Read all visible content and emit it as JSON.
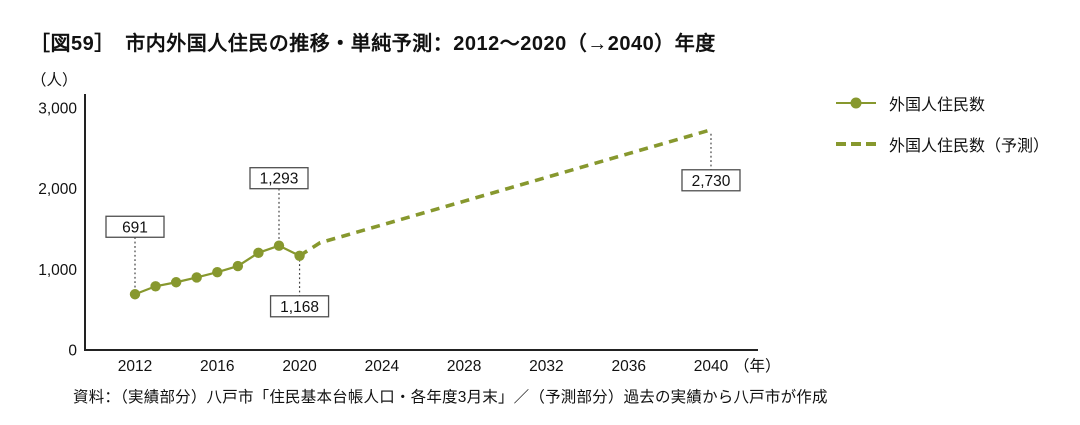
{
  "title": "［図59］　市内外国人住民の推移・単純予測：2012～2020（→2040）年度",
  "y_unit": "（人）",
  "x_unit": "（年）",
  "source": "資料：（実績部分）八戸市「住民基本台帳人口・各年度3月末」／（予測部分）過去の実績から八戸市が作成",
  "legend": [
    {
      "label": "外国人住民数",
      "style": "solid-with-dot"
    },
    {
      "label": "外国人住民数（予測）",
      "style": "dashed"
    }
  ],
  "colors": {
    "series": "#87982e",
    "axis": "#222222",
    "leader": "#444444",
    "annotation_border": "#4f4f4f",
    "annotation_fill": "#ffffff",
    "text": "#111111"
  },
  "chart_data": {
    "type": "line",
    "title": "市内外国人住民の推移・単純予測：2012～2020（→2040）年度",
    "xlabel": "年",
    "ylabel": "人",
    "xlim": [
      2009.6,
      2042.3
    ],
    "ylim": [
      0,
      3000
    ],
    "grid": false,
    "legend_position": "right-outside",
    "x_ticks": [
      2012,
      2016,
      2020,
      2024,
      2028,
      2032,
      2036,
      2040
    ],
    "y_ticks": [
      0,
      1000,
      2000,
      3000
    ],
    "y_tick_labels": [
      "0",
      "1,000",
      "2,000",
      "3,000"
    ],
    "series": [
      {
        "name": "外国人住民数",
        "style": "solid",
        "marker": "circle",
        "x": [
          2012,
          2013,
          2014,
          2015,
          2016,
          2017,
          2018,
          2019,
          2020
        ],
        "y": [
          691,
          790,
          840,
          900,
          965,
          1040,
          1205,
          1293,
          1168
        ]
      },
      {
        "name": "外国人住民数（予測）",
        "style": "dashed",
        "marker": "none",
        "x": [
          2020,
          2021,
          2024,
          2028,
          2032,
          2036,
          2040
        ],
        "y": [
          1168,
          1330,
          1550,
          1845,
          2140,
          2435,
          2730
        ]
      }
    ],
    "annotations": [
      {
        "x": 2012,
        "y": 691,
        "label": "691",
        "position": "above"
      },
      {
        "x": 2019,
        "y": 1293,
        "label": "1,293",
        "position": "above"
      },
      {
        "x": 2020,
        "y": 1168,
        "label": "1,168",
        "position": "below"
      },
      {
        "x": 2040,
        "y": 2730,
        "label": "2,730",
        "position": "below"
      }
    ]
  }
}
